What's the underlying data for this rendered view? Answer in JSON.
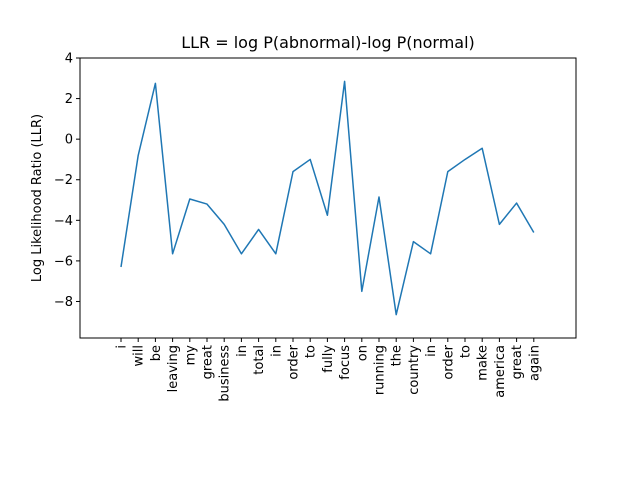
{
  "chart_data": {
    "type": "line",
    "title": "LLR = log P(abnormal)-log P(normal)",
    "xlabel": "",
    "ylabel": "Log Likelihood Ratio (LLR)",
    "ylim": [
      -9.8,
      4.0
    ],
    "yticks": [
      "4",
      "2",
      "0",
      "−2",
      "−4",
      "−6",
      "−8"
    ],
    "ytick_values": [
      4,
      2,
      0,
      -2,
      -4,
      -6,
      -8
    ],
    "grid": false,
    "line_color": "#1f77b4",
    "categories": [
      "i",
      "will",
      "be",
      "leaving",
      "my",
      "great",
      "business",
      "in",
      "total",
      "in",
      "order",
      "to",
      "fully",
      "focus",
      "on",
      "running",
      "the",
      "country",
      "in",
      "order",
      "to",
      "make",
      "america",
      "great",
      "again"
    ],
    "highlighted": [
      false,
      true,
      true,
      false,
      false,
      false,
      false,
      false,
      false,
      false,
      false,
      false,
      false,
      true,
      false,
      false,
      false,
      false,
      false,
      false,
      true,
      true,
      false,
      false,
      false
    ],
    "label_colors": {
      "normal": "#000000",
      "highlighted": "#ff0000"
    },
    "series": [
      {
        "values": [
          -6.3,
          -0.8,
          2.75,
          -5.65,
          -2.95,
          -3.2,
          -4.2,
          -5.65,
          -4.45,
          -5.65,
          -1.6,
          -1.0,
          -3.75,
          2.85,
          -7.5,
          -2.85,
          -8.65,
          -5.05,
          -5.65,
          -1.6,
          -1.0,
          -0.45,
          -4.2,
          -3.15,
          -4.6
        ]
      }
    ]
  }
}
